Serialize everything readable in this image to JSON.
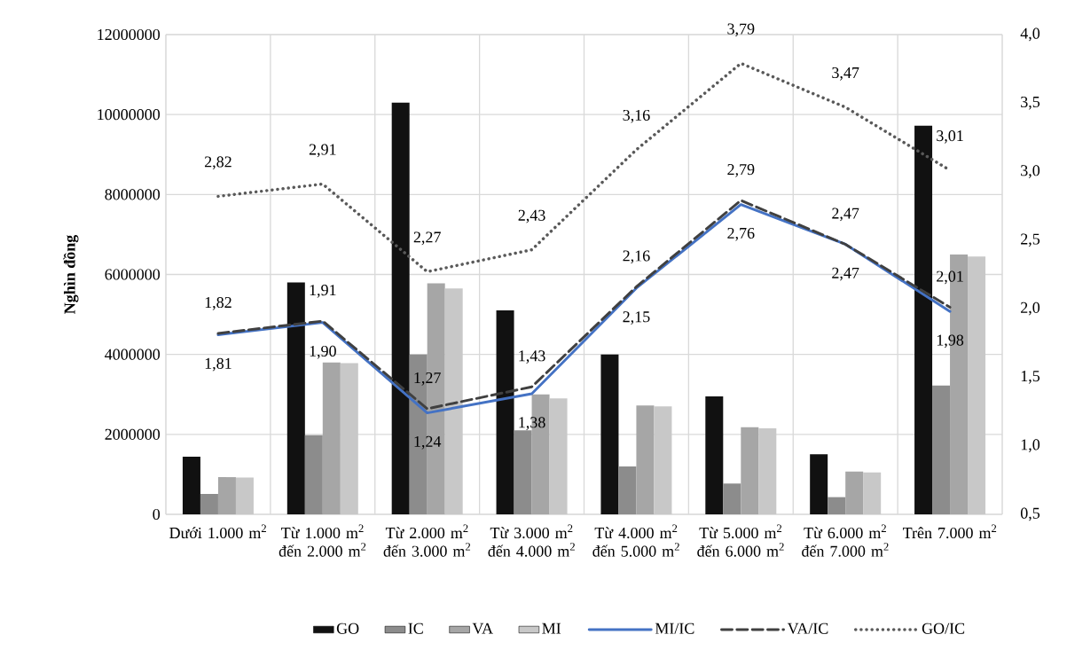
{
  "chart_data": {
    "type": "bar",
    "ylabel": "Nghìn đồng",
    "categories": [
      "Dưới 1.000 m$^{2}$",
      "Từ 1.000 m$^{2}$ đến 2.000 m$^{2}$",
      "Từ 2.000 m$^{2}$ đến 3.000 m$^{2}$",
      "Từ 3.000 m$^{2}$ đến 4.000 m$^{2}$",
      "Từ 4.000 m$^{2}$ đến 5.000 m$^{2}$",
      "Từ 5.000 m$^{2}$ đến 6.000 m$^{2}$",
      "Từ 6.000 m$^{2}$ đến 7.000 m$^{2}$",
      "Trên 7.000 m$^{2}$"
    ],
    "ylim": [
      0,
      12000000
    ],
    "yticks": [
      0,
      2000000,
      4000000,
      6000000,
      8000000,
      10000000,
      12000000
    ],
    "y2lim": [
      0.5,
      4.0
    ],
    "y2ticks": [
      {
        "value": 0.5,
        "label": "0,5"
      },
      {
        "value": 1.0,
        "label": "1,0"
      },
      {
        "value": 1.5,
        "label": "1,5"
      },
      {
        "value": 2.0,
        "label": "2,0"
      },
      {
        "value": 2.5,
        "label": "2,5"
      },
      {
        "value": 3.0,
        "label": "3,0"
      },
      {
        "value": 3.5,
        "label": "3,5"
      },
      {
        "value": 4.0,
        "label": "4,0"
      }
    ],
    "grid": true,
    "legend": "bottom",
    "series": [
      {
        "name": "GO",
        "color": "#111111",
        "values": [
          1440000,
          5800000,
          10300000,
          5100000,
          4000000,
          2950000,
          1500000,
          9720000
        ]
      },
      {
        "name": "IC",
        "color": "#8c8c8c",
        "values": [
          510000,
          1980000,
          4000000,
          2100000,
          1200000,
          770000,
          430000,
          3220000
        ]
      },
      {
        "name": "VA",
        "color": "#a6a6a6",
        "values": [
          930000,
          3800000,
          5780000,
          3000000,
          2720000,
          2180000,
          1070000,
          6500000
        ]
      },
      {
        "name": "MI",
        "color": "#c8c8c8",
        "values": [
          920000,
          3780000,
          5650000,
          2900000,
          2700000,
          2150000,
          1050000,
          6450000
        ]
      },
      {
        "name": "MI/IC",
        "type": "line",
        "axis": "y2",
        "color": "#4472c4",
        "line_style": "solid",
        "values": [
          1.81,
          1.9,
          1.24,
          1.38,
          2.15,
          2.76,
          2.47,
          1.98
        ],
        "value_labels": [
          "1,81",
          "1,90",
          "1,24",
          "1,38",
          "2,15",
          "2,76",
          "2,47",
          "1,98"
        ]
      },
      {
        "name": "VA/IC",
        "type": "line",
        "axis": "y2",
        "color": "#404040",
        "line_style": "dashed",
        "values": [
          1.82,
          1.91,
          1.27,
          1.43,
          2.16,
          2.79,
          2.47,
          2.01
        ],
        "value_labels": [
          "1,82",
          "1,91",
          "1,27",
          "1,43",
          "2,16",
          "2,79",
          "2,47",
          "2,01"
        ]
      },
      {
        "name": "GO/IC",
        "type": "line",
        "axis": "y2",
        "color": "#595959",
        "line_style": "dotted",
        "values": [
          2.82,
          2.91,
          2.27,
          2.43,
          3.16,
          3.79,
          3.47,
          3.01
        ],
        "value_labels": [
          "2,82",
          "2,91",
          "2,27",
          "2,43",
          "3,16",
          "3,79",
          "3,47",
          "3,01"
        ]
      }
    ]
  }
}
